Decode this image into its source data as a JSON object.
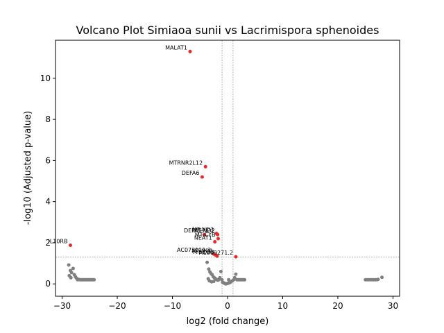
{
  "chart_data": {
    "type": "scatter",
    "title": "Volcano Plot Simiaoa sunii vs Lacrimispora sphenoides",
    "xlabel": "log2 (fold change)",
    "ylabel": "-log10 (Adjusted p-value)",
    "xlim": [
      -31.2,
      31.2
    ],
    "ylim": [
      -0.6,
      11.85
    ],
    "xticks": [
      -30,
      -20,
      -10,
      0,
      10,
      20,
      30
    ],
    "yticks": [
      0,
      2,
      4,
      6,
      8,
      10
    ],
    "xtick_labels": [
      "−30",
      "−20",
      "−10",
      "0",
      "10",
      "20",
      "30"
    ],
    "ytick_labels": [
      "0",
      "2",
      "4",
      "6",
      "8",
      "10"
    ],
    "threshold_lines": {
      "x": [
        -1,
        1
      ],
      "y": 1.3
    },
    "colors": {
      "significant": "#e8282b",
      "nonsignificant": "#808080",
      "threshold": "#808080"
    },
    "significant_points": [
      {
        "label": "MALAT1",
        "x": -6.8,
        "y": 11.3
      },
      {
        "label": "MTRNR2L12",
        "x": -4.0,
        "y": 5.7
      },
      {
        "label": "DEFA6",
        "x": -4.6,
        "y": 5.2
      },
      {
        "label": "IL10RB",
        "x": -28.5,
        "y": 1.88
      },
      {
        "label": "MT-ND3",
        "x": -2.0,
        "y": 2.45
      },
      {
        "label": "MT-ND2",
        "x": -1.8,
        "y": 2.4
      },
      {
        "label": "DEFA5",
        "x": -4.2,
        "y": 2.4
      },
      {
        "label": "MT-CYB",
        "x": -1.7,
        "y": 2.2
      },
      {
        "label": "NEAT1",
        "x": -2.3,
        "y": 2.05
      },
      {
        "label": "AC073111.3",
        "x": -2.5,
        "y": 1.45
      },
      {
        "label": "MT-ND1",
        "x": -2.1,
        "y": 1.4
      },
      {
        "label": "MT-CO3",
        "x": -1.9,
        "y": 1.35
      },
      {
        "label": "AC009271.2",
        "x": 1.5,
        "y": 1.32
      }
    ],
    "nonsignificant_points": [
      [
        -28.8,
        0.92
      ],
      [
        -28.5,
        0.65
      ],
      [
        -28.3,
        0.55
      ],
      [
        -28.0,
        0.75
      ],
      [
        -27.8,
        0.45
      ],
      [
        -27.6,
        0.35
      ],
      [
        -27.4,
        0.28
      ],
      [
        -27.2,
        0.2
      ],
      [
        -27.0,
        0.22
      ],
      [
        -26.8,
        0.2
      ],
      [
        -26.6,
        0.2
      ],
      [
        -26.4,
        0.2
      ],
      [
        -26.2,
        0.2
      ],
      [
        -26.0,
        0.2
      ],
      [
        -25.8,
        0.2
      ],
      [
        -25.6,
        0.2
      ],
      [
        -25.4,
        0.2
      ],
      [
        -25.2,
        0.2
      ],
      [
        -25.0,
        0.2
      ],
      [
        -24.8,
        0.2
      ],
      [
        -24.6,
        0.2
      ],
      [
        -24.4,
        0.2
      ],
      [
        -24.2,
        0.2
      ],
      [
        -28.7,
        0.4
      ],
      [
        -28.4,
        0.3
      ],
      [
        -3.7,
        1.05
      ],
      [
        -3.4,
        0.72
      ],
      [
        -3.2,
        0.58
      ],
      [
        -3.0,
        0.5
      ],
      [
        -2.8,
        0.45
      ],
      [
        -2.6,
        0.35
      ],
      [
        -2.4,
        0.3
      ],
      [
        -2.2,
        0.25
      ],
      [
        -2.0,
        0.22
      ],
      [
        -1.8,
        0.18
      ],
      [
        -1.6,
        0.2
      ],
      [
        -1.4,
        0.3
      ],
      [
        -1.2,
        0.6
      ],
      [
        -1.0,
        0.2
      ],
      [
        -3.5,
        0.25
      ],
      [
        -0.9,
        0.08
      ],
      [
        -0.7,
        0.05
      ],
      [
        -0.5,
        0.02
      ],
      [
        -0.3,
        0.0
      ],
      [
        -0.1,
        0.02
      ],
      [
        0.1,
        0.03
      ],
      [
        0.3,
        0.05
      ],
      [
        0.5,
        0.08
      ],
      [
        0.7,
        0.12
      ],
      [
        0.9,
        0.15
      ],
      [
        1.1,
        0.2
      ],
      [
        1.3,
        0.3
      ],
      [
        1.5,
        0.47
      ],
      [
        1.7,
        0.2
      ],
      [
        1.9,
        0.2
      ],
      [
        2.1,
        0.2
      ],
      [
        2.3,
        0.2
      ],
      [
        2.5,
        0.2
      ],
      [
        2.7,
        0.2
      ],
      [
        2.9,
        0.2
      ],
      [
        3.1,
        0.2
      ],
      [
        -3.3,
        0.15
      ],
      [
        -2.9,
        0.1
      ],
      [
        -2.5,
        0.12
      ],
      [
        0.2,
        0.2
      ],
      [
        25.0,
        0.2
      ],
      [
        25.3,
        0.2
      ],
      [
        25.6,
        0.2
      ],
      [
        25.9,
        0.2
      ],
      [
        26.2,
        0.2
      ],
      [
        26.5,
        0.2
      ],
      [
        26.8,
        0.2
      ],
      [
        27.1,
        0.2
      ],
      [
        27.3,
        0.22
      ],
      [
        28.0,
        0.32
      ]
    ]
  }
}
